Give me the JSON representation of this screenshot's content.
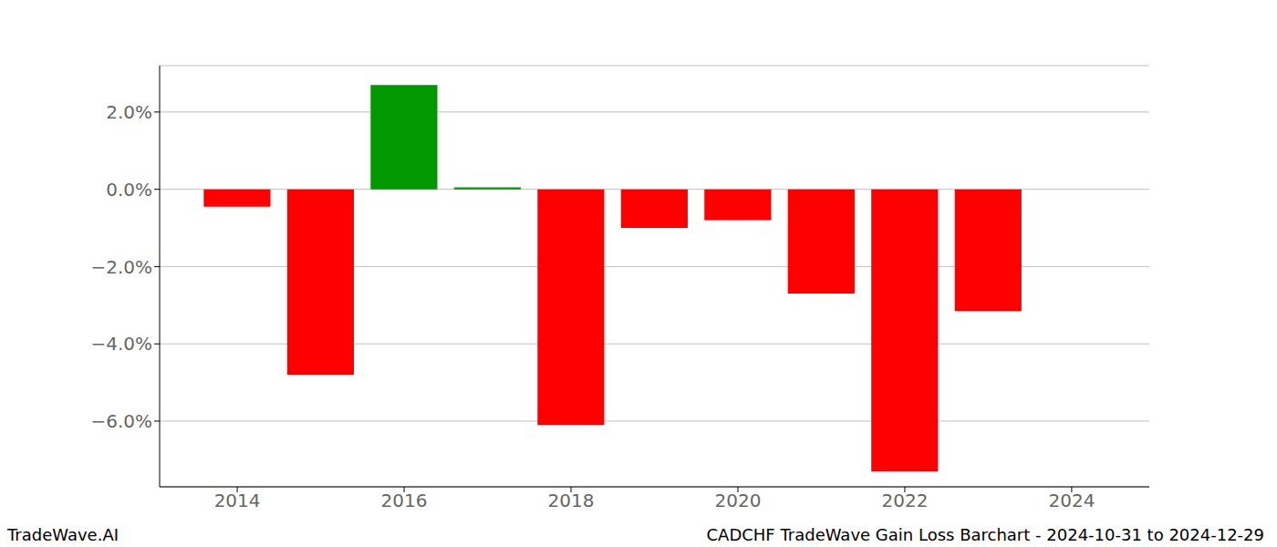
{
  "chart_data": {
    "type": "bar",
    "title": "CADCHF TradeWave Gain Loss Barchart - 2024-10-31 to 2024-12-29",
    "annotations": [
      "TradeWave.AI"
    ],
    "x": [
      2014,
      2015,
      2016,
      2017,
      2018,
      2019,
      2020,
      2021,
      2022,
      2023
    ],
    "values": [
      -0.45,
      -4.8,
      2.7,
      0.05,
      -6.1,
      -1.0,
      -0.8,
      -2.7,
      -7.3,
      -3.15
    ],
    "colors": [
      "#ff0000",
      "#ff0000",
      "#009900",
      "#009900",
      "#ff0000",
      "#ff0000",
      "#ff0000",
      "#ff0000",
      "#ff0000",
      "#ff0000"
    ],
    "xlim": [
      2013.07,
      2024.93
    ],
    "xticks": [
      2014,
      2016,
      2018,
      2020,
      2022,
      2024
    ],
    "ylim": [
      -7.7,
      3.2
    ],
    "yticks": [
      {
        "value": -6,
        "label": "−6.0%"
      },
      {
        "value": -4,
        "label": "−4.0%"
      },
      {
        "value": -2,
        "label": "−2.0%"
      },
      {
        "value": 0,
        "label": "0.0%"
      },
      {
        "value": 2,
        "label": "2.0%"
      }
    ],
    "grid": true
  }
}
